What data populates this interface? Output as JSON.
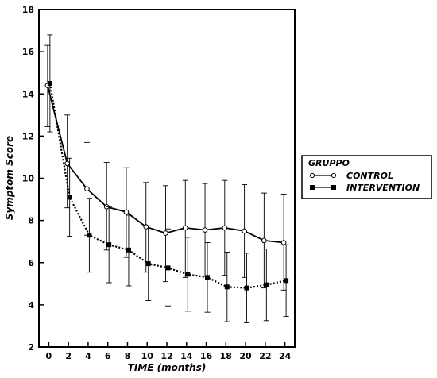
{
  "chart_data": {
    "type": "line",
    "xlabel": "TIME (months)",
    "ylabel": "Symptom Score",
    "xlim": [
      -1,
      25
    ],
    "ylim": [
      2,
      18
    ],
    "x_ticks": [
      0,
      2,
      4,
      6,
      8,
      10,
      12,
      14,
      16,
      18,
      20,
      22,
      24
    ],
    "y_ticks": [
      2,
      4,
      6,
      8,
      10,
      12,
      14,
      16,
      18
    ],
    "x": [
      0,
      2,
      4,
      6,
      8,
      10,
      12,
      14,
      16,
      18,
      20,
      22,
      24
    ],
    "grid": false,
    "legend": {
      "title": "GRUPPO",
      "placement": "right-outside"
    },
    "series": [
      {
        "name": "CONTROL",
        "marker": "open-circle",
        "line": "solid",
        "values": [
          14.4,
          10.7,
          9.5,
          8.65,
          8.4,
          7.7,
          7.4,
          7.65,
          7.55,
          7.65,
          7.5,
          7.05,
          6.95
        ],
        "err_upper": [
          16.3,
          13.0,
          11.7,
          10.75,
          10.5,
          9.8,
          9.65,
          9.9,
          9.75,
          9.9,
          9.7,
          9.3,
          9.25
        ],
        "err_lower": [
          12.45,
          8.6,
          7.3,
          6.6,
          6.25,
          5.55,
          5.1,
          5.3,
          5.35,
          5.4,
          5.3,
          4.8,
          4.7
        ]
      },
      {
        "name": "INTERVENTION",
        "marker": "filled-square",
        "line": "dotted",
        "values": [
          14.5,
          9.1,
          7.3,
          6.85,
          6.6,
          5.95,
          5.75,
          5.45,
          5.3,
          4.85,
          4.8,
          4.95,
          5.15
        ],
        "err_upper": [
          16.8,
          10.95,
          9.05,
          8.65,
          8.25,
          7.75,
          7.6,
          7.2,
          6.95,
          6.5,
          6.45,
          6.65,
          6.85
        ],
        "err_lower": [
          12.2,
          7.25,
          5.55,
          5.05,
          4.9,
          4.2,
          3.95,
          3.7,
          3.65,
          3.2,
          3.15,
          3.25,
          3.45
        ]
      }
    ]
  }
}
